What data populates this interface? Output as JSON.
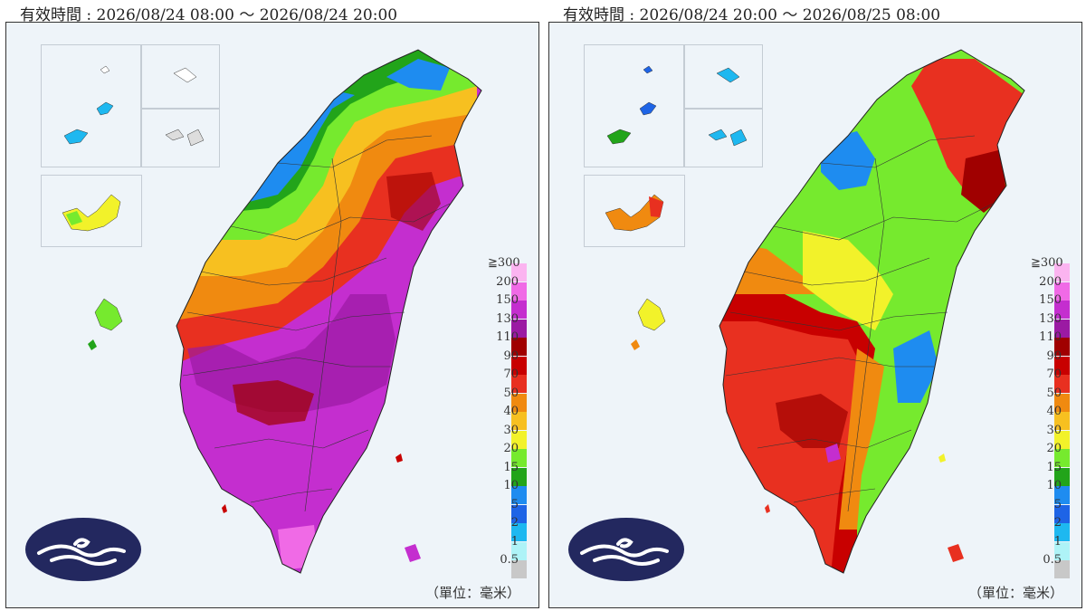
{
  "panels": [
    {
      "title": "有效時間 : 2026/08/24 08:00 ～ 2026/08/24 20:00",
      "unit": "（單位：毫米）"
    },
    {
      "title": "有效時間 : 2026/08/24 20:00 ～ 2026/08/25 08:00",
      "unit": "（單位：毫米）"
    }
  ],
  "legend": {
    "labels": [
      "≧300",
      "200",
      "150",
      "130",
      "110",
      "90",
      "70",
      "50",
      "40",
      "30",
      "20",
      "15",
      "10",
      "5",
      "2",
      "1",
      "0.5"
    ],
    "colors": [
      "#fbb4f0",
      "#f06ae6",
      "#c42ecf",
      "#9b1aa3",
      "#a00000",
      "#c80000",
      "#e83020",
      "#f08a10",
      "#f7c020",
      "#f2f22a",
      "#76ea2e",
      "#22a41a",
      "#1e8cf0",
      "#1e64e6",
      "#1eb8f0",
      "#aef3f7",
      "#c8c8c8"
    ]
  },
  "colors": {
    "ocean": "#eef4f9",
    "logo_ellipse": "#23285f",
    "logo_cloud": "#ffffff"
  }
}
